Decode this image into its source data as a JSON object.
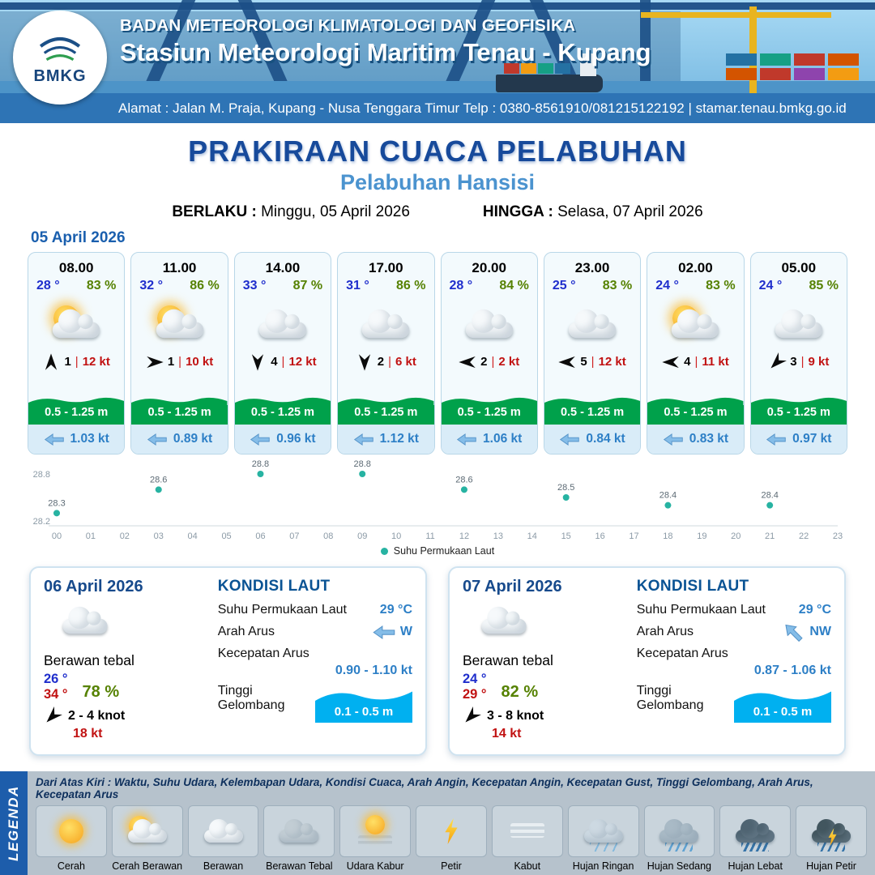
{
  "header": {
    "logo_text": "BMKG",
    "agency": "BADAN METEOROLOGI KLIMATOLOGI DAN GEOFISIKA",
    "station": "Stasiun Meteorologi Maritim Tenau - Kupang",
    "address": "Alamat : Jalan M. Praja, Kupang - Nusa Tenggara Timur Telp : 0380-8561910/081215122192  | stamar.tenau.bmkg.go.id"
  },
  "title": {
    "main": "PRAKIRAAN CUACA PELABUHAN",
    "port": "Pelabuhan Hansisi",
    "berlaku_label": "BERLAKU :",
    "berlaku_value": "Minggu, 05 April 2026",
    "hingga_label": "HINGGA :",
    "hingga_value": "Selasa, 07 April 2026"
  },
  "forecast_date": "05 April 2026",
  "ui": {
    "divider": "|"
  },
  "cards": [
    {
      "time": "08.00",
      "temp": "28 °",
      "rh": "83 %",
      "icon": "sun-cloud",
      "wind_dir": "N",
      "wind_speed": "1",
      "gust": "12 kt",
      "wave": "0.5 - 1.25 m",
      "current": "1.03 kt"
    },
    {
      "time": "11.00",
      "temp": "32 °",
      "rh": "86 %",
      "icon": "sun-cloud",
      "wind_dir": "E",
      "wind_speed": "1",
      "gust": "10 kt",
      "wave": "0.5 - 1.25 m",
      "current": "0.89 kt"
    },
    {
      "time": "14.00",
      "temp": "33 °",
      "rh": "87 %",
      "icon": "cloud",
      "wind_dir": "S",
      "wind_speed": "4",
      "gust": "12 kt",
      "wave": "0.5 - 1.25 m",
      "current": "0.96 kt"
    },
    {
      "time": "17.00",
      "temp": "31 °",
      "rh": "86 %",
      "icon": "cloud",
      "wind_dir": "S",
      "wind_speed": "2",
      "gust": "6 kt",
      "wave": "0.5 - 1.25 m",
      "current": "1.12 kt"
    },
    {
      "time": "20.00",
      "temp": "28 °",
      "rh": "84 %",
      "icon": "cloud",
      "wind_dir": "W",
      "wind_speed": "2",
      "gust": "2 kt",
      "wave": "0.5 - 1.25 m",
      "current": "1.06 kt"
    },
    {
      "time": "23.00",
      "temp": "25 °",
      "rh": "83 %",
      "icon": "cloud",
      "wind_dir": "W",
      "wind_speed": "5",
      "gust": "12 kt",
      "wave": "0.5 - 1.25 m",
      "current": "0.84 kt"
    },
    {
      "time": "02.00",
      "temp": "24 °",
      "rh": "83 %",
      "icon": "sun-cloud",
      "wind_dir": "W",
      "wind_speed": "4",
      "gust": "11 kt",
      "wave": "0.5 - 1.25 m",
      "current": "0.83 kt"
    },
    {
      "time": "05.00",
      "temp": "24 °",
      "rh": "85 %",
      "icon": "cloud",
      "wind_dir": "SW",
      "wind_speed": "3",
      "gust": "9 kt",
      "wave": "0.5 - 1.25 m",
      "current": "0.97 kt"
    }
  ],
  "chart_data": {
    "type": "scatter",
    "series_name": "Suhu Permukaan Laut",
    "x": [
      0,
      3,
      6,
      9,
      12,
      15,
      18,
      21
    ],
    "values": [
      28.3,
      28.6,
      28.8,
      28.8,
      28.6,
      28.5,
      28.4,
      28.4
    ],
    "x_labels": [
      "00",
      "01",
      "02",
      "03",
      "04",
      "05",
      "06",
      "07",
      "08",
      "09",
      "10",
      "11",
      "12",
      "13",
      "14",
      "15",
      "16",
      "17",
      "18",
      "19",
      "20",
      "21",
      "22",
      "23"
    ],
    "xlabel": "",
    "ylabel": "",
    "ylim": [
      28.2,
      28.8
    ],
    "yticks": [
      28.2,
      28.8
    ],
    "grid": false,
    "legend_position": "bottom",
    "point_color": "#27b3a2"
  },
  "sea_labels": {
    "section_title": "KONDISI LAUT",
    "sst": "Suhu Permukaan Laut",
    "current_dir": "Arah Arus",
    "current_speed": "Kecepatan Arus",
    "wave_height": "Tinggi Gelombang"
  },
  "daily": [
    {
      "date": "06 April 2026",
      "icon": "cloud",
      "condition": "Berawan tebal",
      "temp_min": "26 °",
      "temp_max": "34 °",
      "rh": "78 %",
      "wind_dir": "SW",
      "wind": "2 - 4 knot",
      "gust": "18 kt",
      "sst": "29 °C",
      "cur_dir": "W",
      "cur_speed": "0.90 - 1.10 kt",
      "wave": "0.1 - 0.5 m"
    },
    {
      "date": "07 April 2026",
      "icon": "cloud",
      "condition": "Berawan tebal",
      "temp_min": "24 °",
      "temp_max": "29 °",
      "rh": "82 %",
      "wind_dir": "SW",
      "wind": "3 - 8 knot",
      "gust": "14 kt",
      "sst": "29 °C",
      "cur_dir": "NW",
      "cur_speed": "0.87 - 1.06 kt",
      "wave": "0.1 - 0.5 m"
    }
  ],
  "legend": {
    "title": "LEGENDA",
    "note": "Dari Atas Kiri : Waktu, Suhu Udara, Kelembapan Udara, Kondisi Cuaca, Arah Angin, Kecepatan Angin, Kecepatan Gust, Tinggi Gelombang, Arah Arus, Kecepatan Arus",
    "items": [
      {
        "label": "Cerah",
        "icon": "sun"
      },
      {
        "label": "Cerah Berawan",
        "icon": "sun-cloud"
      },
      {
        "label": "Berawan",
        "icon": "cloud"
      },
      {
        "label": "Berawan Tebal",
        "icon": "cloud-dark"
      },
      {
        "label": "Udara Kabur",
        "icon": "haze"
      },
      {
        "label": "Petir",
        "icon": "lightning"
      },
      {
        "label": "Kabut",
        "icon": "fog"
      },
      {
        "label": "Hujan Ringan",
        "icon": "rain-light"
      },
      {
        "label": "Hujan Sedang",
        "icon": "rain-medium"
      },
      {
        "label": "Hujan Lebat",
        "icon": "rain-heavy"
      },
      {
        "label": "Hujan Petir",
        "icon": "thunderstorm"
      }
    ]
  }
}
